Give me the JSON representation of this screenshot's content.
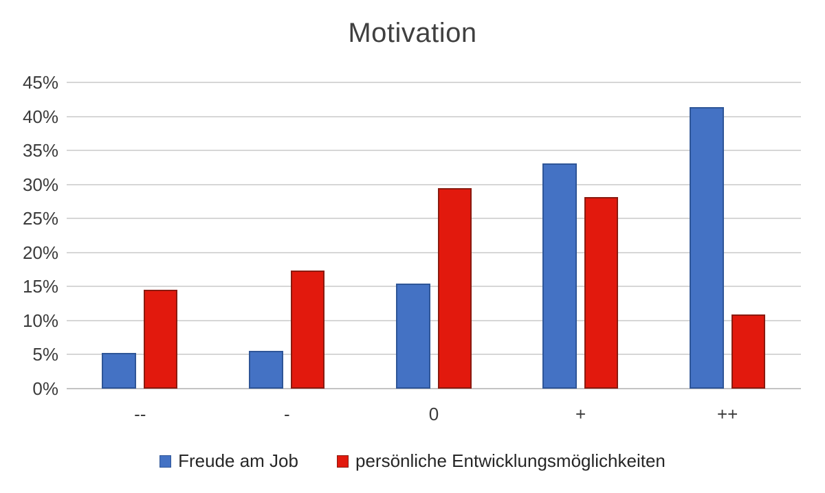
{
  "chart_data": {
    "type": "bar",
    "title": "Motivation",
    "categories": [
      "--",
      "-",
      "0",
      "+",
      "++"
    ],
    "series": [
      {
        "name": "Freude am Job",
        "color": "#4472C4",
        "border_color": "#2E5597",
        "values": [
          5.2,
          5.5,
          15.4,
          33.1,
          41.4
        ]
      },
      {
        "name": "persönliche Entwicklungsmöglichkeiten",
        "color": "#E2190D",
        "border_color": "#8A1A0F",
        "values": [
          14.5,
          17.4,
          29.5,
          28.1,
          10.9
        ]
      }
    ],
    "xlabel": "",
    "ylabel": "",
    "ylim": [
      0,
      45
    ],
    "y_ticks": [
      {
        "label": "0%",
        "value": 0
      },
      {
        "label": "5%",
        "value": 5
      },
      {
        "label": "10%",
        "value": 10
      },
      {
        "label": "15%",
        "value": 15
      },
      {
        "label": "20%",
        "value": 20
      },
      {
        "label": "25%",
        "value": 25
      },
      {
        "label": "30%",
        "value": 30
      },
      {
        "label": "35%",
        "value": 35
      },
      {
        "label": "40%",
        "value": 40
      },
      {
        "label": "45%",
        "value": 45
      }
    ],
    "grid": true,
    "legend_position": "bottom"
  },
  "colors": {
    "background": "#FFFFFF",
    "gridline": "#D6D6D6",
    "axis_line": "#C3C3C3",
    "title_text": "#404040",
    "axis_text": "#3B3B3B",
    "legend_text": "#262626"
  }
}
